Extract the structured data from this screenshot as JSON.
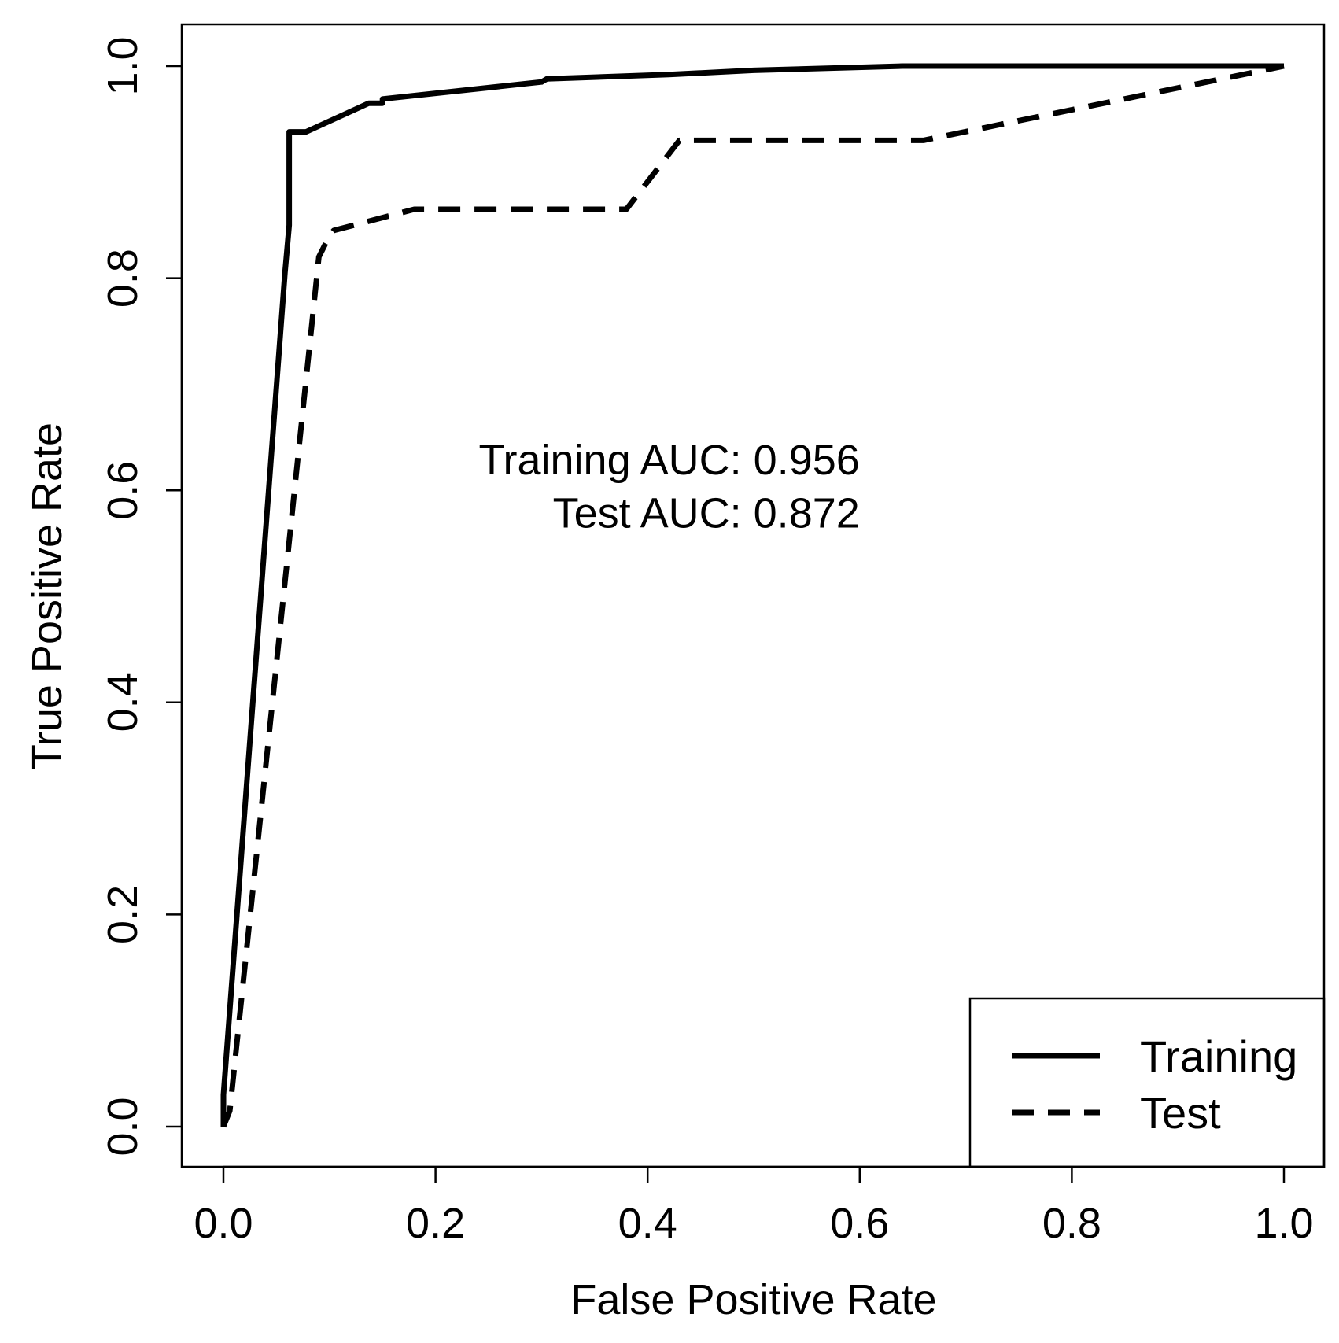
{
  "chart_data": {
    "type": "line",
    "title": "",
    "xlabel": "False Positive Rate",
    "ylabel": "True Positive Rate",
    "xlim": [
      0,
      1
    ],
    "ylim": [
      0,
      1
    ],
    "x_ticks": [
      0.0,
      0.2,
      0.4,
      0.6,
      0.8,
      1.0
    ],
    "y_ticks": [
      0.0,
      0.2,
      0.4,
      0.6,
      0.8,
      1.0
    ],
    "x_tick_labels": [
      "0.0",
      "0.2",
      "0.4",
      "0.6",
      "0.8",
      "1.0"
    ],
    "y_tick_labels": [
      "0.0",
      "0.2",
      "0.4",
      "0.6",
      "0.8",
      "1.0"
    ],
    "grid": false,
    "legend_position": "bottom-right",
    "series": [
      {
        "name": "Training",
        "line_style": "solid",
        "color": "#000000",
        "points": [
          [
            0.0,
            0.0
          ],
          [
            0.0,
            0.03
          ],
          [
            0.058,
            0.805
          ],
          [
            0.062,
            0.85
          ],
          [
            0.062,
            0.938
          ],
          [
            0.078,
            0.938
          ],
          [
            0.137,
            0.965
          ],
          [
            0.15,
            0.965
          ],
          [
            0.15,
            0.969
          ],
          [
            0.3,
            0.985
          ],
          [
            0.305,
            0.988
          ],
          [
            0.42,
            0.992
          ],
          [
            0.5,
            0.996
          ],
          [
            0.64,
            1.0
          ],
          [
            1.0,
            1.0
          ]
        ]
      },
      {
        "name": "Test",
        "line_style": "dashed",
        "color": "#000000",
        "points": [
          [
            0.0,
            0.0
          ],
          [
            0.006,
            0.015
          ],
          [
            0.09,
            0.82
          ],
          [
            0.1,
            0.84
          ],
          [
            0.104,
            0.845
          ],
          [
            0.18,
            0.865
          ],
          [
            0.38,
            0.865
          ],
          [
            0.43,
            0.93
          ],
          [
            0.66,
            0.93
          ],
          [
            1.0,
            1.0
          ]
        ]
      }
    ],
    "annotations": [
      {
        "text": "Training AUC: 0.956",
        "x": 0.6,
        "y": 0.615
      },
      {
        "text": "Test AUC: 0.872",
        "x": 0.6,
        "y": 0.565
      }
    ]
  }
}
